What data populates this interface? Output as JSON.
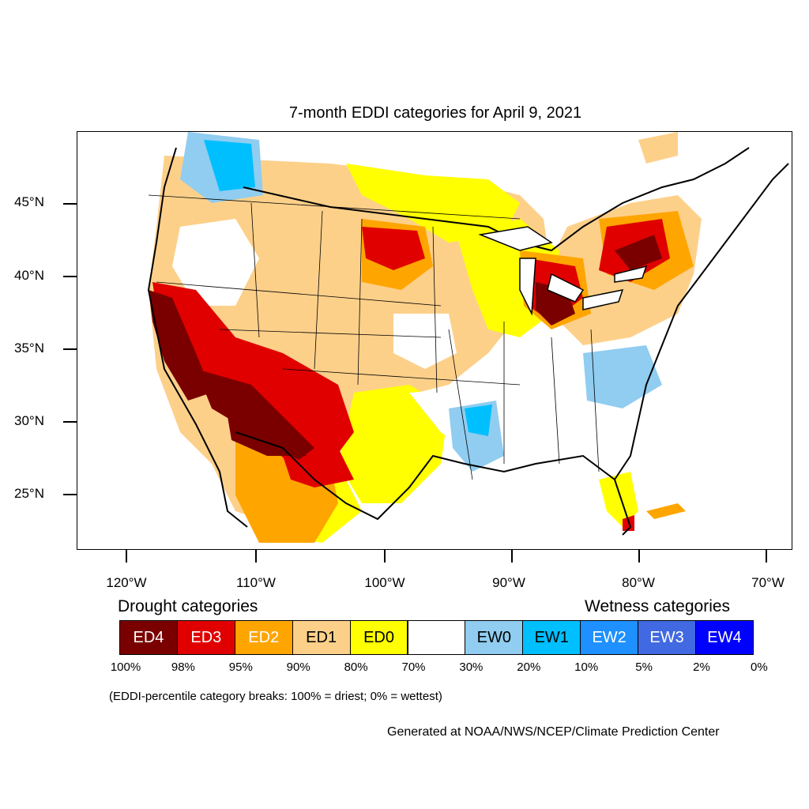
{
  "title": "7-month EDDI categories for April 9, 2021",
  "lat_labels": [
    "45°N",
    "40°N",
    "35°N",
    "30°N",
    "25°N"
  ],
  "lon_labels": [
    "120°W",
    "110°W",
    "100°W",
    "90°W",
    "80°W",
    "70°W"
  ],
  "legend": {
    "drought_heading": "Drought categories",
    "wetness_heading": "Wetness categories",
    "categories": [
      {
        "label": "ED4",
        "color": "#7a0000",
        "text_color": "#ffffff"
      },
      {
        "label": "ED3",
        "color": "#e00000",
        "text_color": "#ffffff"
      },
      {
        "label": "ED2",
        "color": "#ffa500",
        "text_color": "#ffffff"
      },
      {
        "label": "ED1",
        "color": "#fdd08a",
        "text_color": "#000000"
      },
      {
        "label": "ED0",
        "color": "#ffff00",
        "text_color": "#000000"
      },
      {
        "label": "",
        "color": "#ffffff",
        "text_color": "#000000"
      },
      {
        "label": "EW0",
        "color": "#90cdf0",
        "text_color": "#000000"
      },
      {
        "label": "EW1",
        "color": "#00bfff",
        "text_color": "#000000"
      },
      {
        "label": "EW2",
        "color": "#1e90ff",
        "text_color": "#ffffff"
      },
      {
        "label": "EW3",
        "color": "#4169e1",
        "text_color": "#ffffff"
      },
      {
        "label": "EW4",
        "color": "#0000ff",
        "text_color": "#ffffff"
      }
    ],
    "breaks": [
      "100%",
      "98%",
      "95%",
      "90%",
      "80%",
      "70%",
      "30%",
      "20%",
      "10%",
      "5%",
      "2%",
      "0%"
    ]
  },
  "note": "(EDDI-percentile category breaks: 100% = driest; 0% = wettest)",
  "credit": "Generated at NOAA/NWS/NCEP/Climate Prediction Center"
}
